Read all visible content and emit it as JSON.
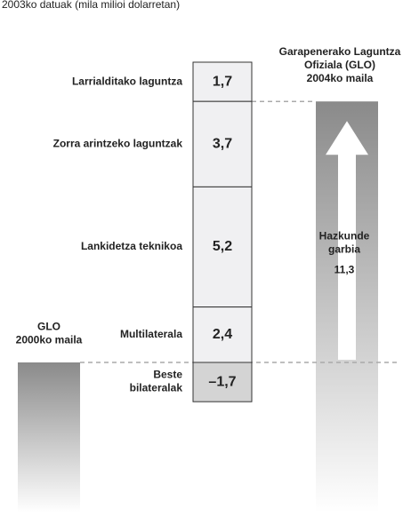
{
  "chart_data": {
    "type": "waterfall",
    "subtitle": "2003ko datuak (mila milioi dolarretan)",
    "categories": [
      "Larrialditako laguntza",
      "Zorra arintzeko laguntzak",
      "Lankidetza teknikoa",
      "Multilaterala",
      "Beste\nbilateralak"
    ],
    "values": [
      1.7,
      3.7,
      5.2,
      2.4,
      -1.7
    ],
    "value_labels": [
      "1,7",
      "3,7",
      "5,2",
      "2,4",
      "–1,7"
    ],
    "color": "#f0f0f2",
    "negative_color": "#d4d4d4",
    "start_label": "GLO\n2000ko maila",
    "end_label": "Garapenerako Laguntza\nOfiziala (GLO)\n2004ko maila",
    "net_growth": {
      "label": "Hazkunde\ngarbia",
      "value": 11.3,
      "value_label": "11,3"
    }
  }
}
